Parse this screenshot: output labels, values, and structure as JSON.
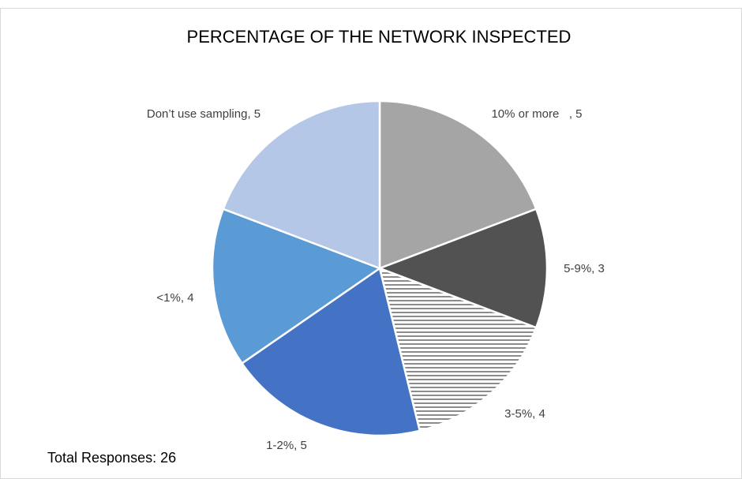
{
  "chart_data": {
    "type": "pie",
    "title": "PERCENTAGE OF THE NETWORK INSPECTED",
    "categories": [
      "10% or more   ",
      "5-9%",
      "3-5%",
      "1-2%",
      "<1%",
      "Don’t use sampling"
    ],
    "values": [
      5,
      3,
      4,
      5,
      4,
      5
    ],
    "value_labels": [
      ", 5",
      ", 3",
      ", 4",
      ", 5",
      ", 4",
      ", 5"
    ],
    "colors": [
      "#a5a5a5",
      "#525252",
      "hatch",
      "#4472c4",
      "#5b9bd5",
      "#b4c7e7"
    ],
    "annotation": "Total Responses: 26"
  }
}
